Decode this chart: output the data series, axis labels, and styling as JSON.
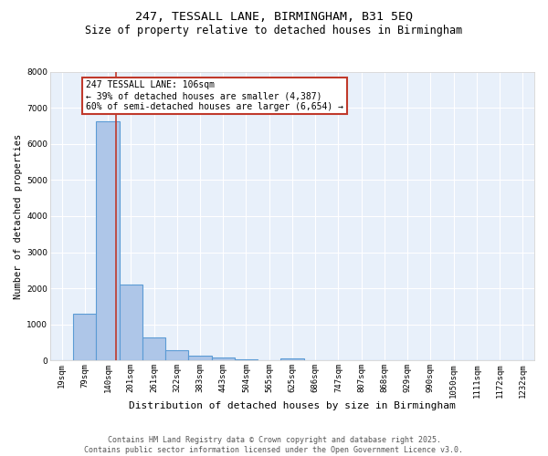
{
  "title": "247, TESSALL LANE, BIRMINGHAM, B31 5EQ",
  "subtitle": "Size of property relative to detached houses in Birmingham",
  "xlabel": "Distribution of detached houses by size in Birmingham",
  "ylabel": "Number of detached properties",
  "categories": [
    "19sqm",
    "79sqm",
    "140sqm",
    "201sqm",
    "261sqm",
    "322sqm",
    "383sqm",
    "443sqm",
    "504sqm",
    "565sqm",
    "625sqm",
    "686sqm",
    "747sqm",
    "807sqm",
    "868sqm",
    "929sqm",
    "990sqm",
    "1050sqm",
    "1111sqm",
    "1172sqm",
    "1232sqm"
  ],
  "values": [
    0,
    1310,
    6620,
    2100,
    650,
    300,
    130,
    80,
    30,
    10,
    50,
    0,
    0,
    0,
    0,
    0,
    0,
    0,
    0,
    0,
    0
  ],
  "bar_color": "#aec6e8",
  "bar_edgecolor": "#5b9bd5",
  "bar_linewidth": 0.8,
  "vline_x": 2.35,
  "vline_color": "#c0392b",
  "ylim": [
    0,
    8000
  ],
  "yticks": [
    0,
    1000,
    2000,
    3000,
    4000,
    5000,
    6000,
    7000,
    8000
  ],
  "annotation_text": "247 TESSALL LANE: 106sqm\n← 39% of detached houses are smaller (4,387)\n60% of semi-detached houses are larger (6,654) →",
  "annotation_box_color": "#c0392b",
  "footer_line1": "Contains HM Land Registry data © Crown copyright and database right 2025.",
  "footer_line2": "Contains public sector information licensed under the Open Government Licence v3.0.",
  "title_fontsize": 9.5,
  "subtitle_fontsize": 8.5,
  "xlabel_fontsize": 8,
  "ylabel_fontsize": 7.5,
  "tick_fontsize": 6.5,
  "annotation_fontsize": 7,
  "footer_fontsize": 6,
  "bg_color": "#e8f0fa",
  "fig_bg_color": "#ffffff",
  "grid_color": "#ffffff",
  "spine_color": "#cccccc"
}
